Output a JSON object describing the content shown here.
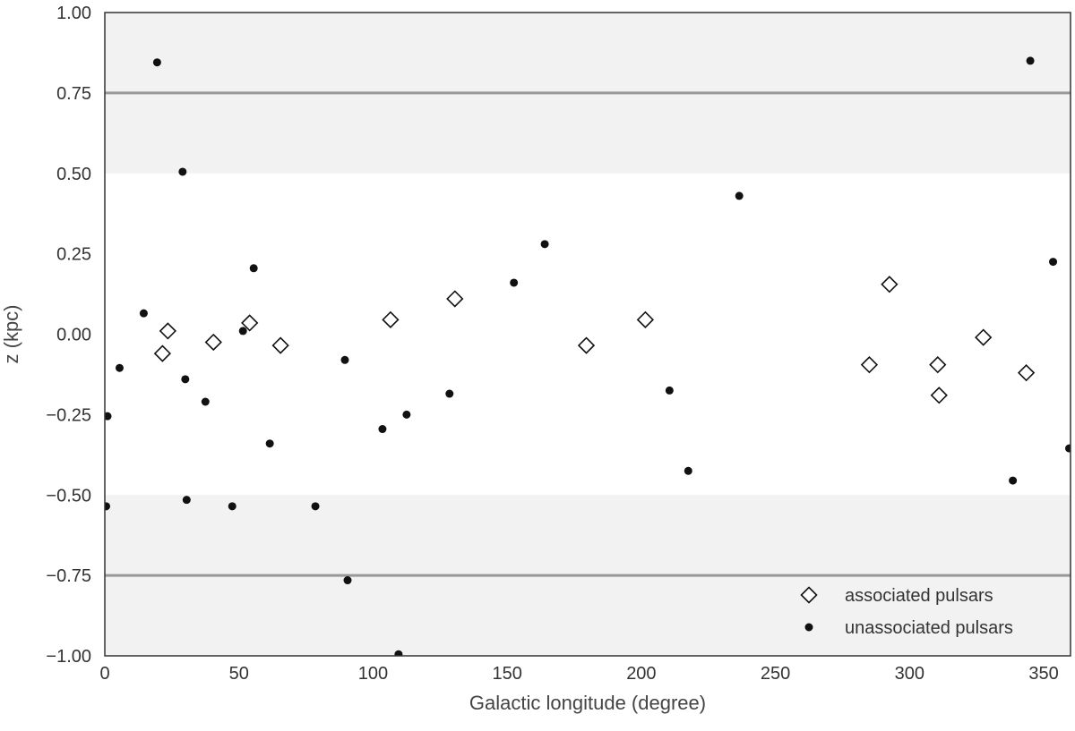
{
  "chart_data": {
    "type": "scatter",
    "xlabel": "Galactic longitude (degree)",
    "ylabel": "z (kpc)",
    "xlim": [
      0,
      360
    ],
    "ylim": [
      -1.0,
      1.0
    ],
    "xticks": [
      0,
      50,
      100,
      150,
      200,
      250,
      300,
      350
    ],
    "yticks": [
      -1.0,
      -0.75,
      -0.5,
      -0.25,
      0.0,
      0.25,
      0.5,
      0.75,
      1.0
    ],
    "xtick_labels": [
      "0",
      "50",
      "100",
      "150",
      "200",
      "250",
      "300",
      "350"
    ],
    "ytick_labels": [
      "−1.00",
      "−0.75",
      "−0.50",
      "−0.25",
      "0.00",
      "0.25",
      "0.50",
      "0.75",
      "1.00"
    ],
    "shaded_bands": [
      [
        0.5,
        1.0
      ],
      [
        -1.0,
        -0.5
      ]
    ],
    "reference_lines_y": [
      0.75,
      -0.75
    ],
    "grid": false,
    "legend_position": "bottom-right",
    "colors": {
      "band": "#f2f2f2",
      "line": "#999999",
      "frame": "#333333",
      "point": "#111111"
    },
    "series": [
      {
        "name": "associated pulsars",
        "marker": "diamond-open",
        "points": [
          [
            21.5,
            -0.06
          ],
          [
            23.5,
            0.01
          ],
          [
            40.5,
            -0.025
          ],
          [
            54,
            0.035
          ],
          [
            65.5,
            -0.035
          ],
          [
            106.5,
            0.045
          ],
          [
            130.5,
            0.11
          ],
          [
            179.5,
            -0.035
          ],
          [
            201.5,
            0.045
          ],
          [
            285,
            -0.095
          ],
          [
            292.5,
            0.155
          ],
          [
            310.5,
            -0.095
          ],
          [
            311,
            -0.19
          ],
          [
            327.5,
            -0.01
          ],
          [
            343.5,
            -0.12
          ]
        ]
      },
      {
        "name": "unassociated pulsars",
        "marker": "filled-circle",
        "points": [
          [
            19.5,
            0.845
          ],
          [
            345,
            0.85
          ],
          [
            29,
            0.505
          ],
          [
            236.5,
            0.43
          ],
          [
            164,
            0.28
          ],
          [
            55.5,
            0.205
          ],
          [
            353.5,
            0.225
          ],
          [
            152.5,
            0.16
          ],
          [
            14.5,
            0.065
          ],
          [
            51.5,
            0.01
          ],
          [
            89.5,
            -0.08
          ],
          [
            5.5,
            -0.105
          ],
          [
            30,
            -0.14
          ],
          [
            210.5,
            -0.175
          ],
          [
            128.5,
            -0.185
          ],
          [
            37.5,
            -0.21
          ],
          [
            1,
            -0.255
          ],
          [
            112.5,
            -0.25
          ],
          [
            103.5,
            -0.295
          ],
          [
            61.5,
            -0.34
          ],
          [
            359.5,
            -0.355
          ],
          [
            217.5,
            -0.425
          ],
          [
            338.5,
            -0.455
          ],
          [
            30.5,
            -0.515
          ],
          [
            0.5,
            -0.535
          ],
          [
            47.5,
            -0.535
          ],
          [
            78.5,
            -0.535
          ],
          [
            90.5,
            -0.765
          ],
          [
            109.5,
            -0.995
          ]
        ]
      }
    ]
  }
}
